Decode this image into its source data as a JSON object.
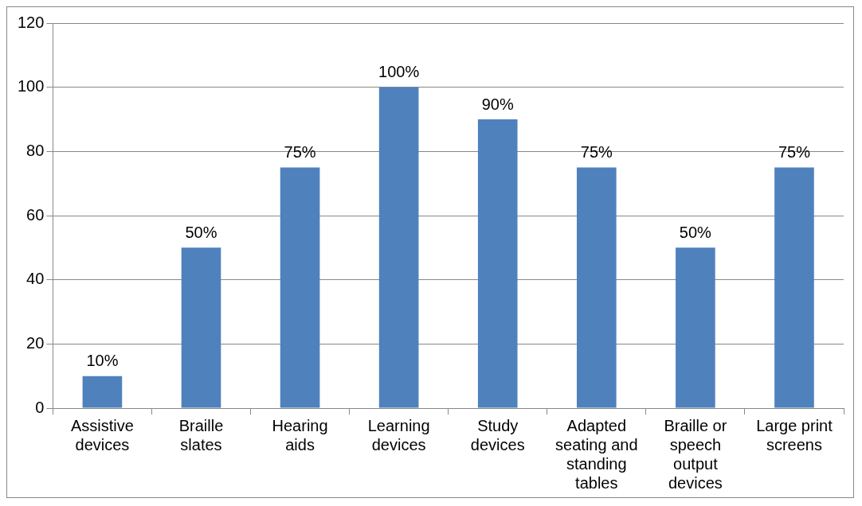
{
  "chart_data": {
    "type": "bar",
    "categories": [
      "Assistive devices",
      "Braille slates",
      "Hearing aids",
      "Learning devices",
      "Study devices",
      "Adapted seating and standing tables",
      "Braille or speech output devices",
      "Large print screens"
    ],
    "values": [
      10,
      50,
      75,
      100,
      90,
      75,
      50,
      75
    ],
    "value_labels": [
      "10%",
      "50%",
      "75%",
      "100%",
      "90%",
      "75%",
      "50%",
      "75%"
    ],
    "color": "#4f81bd",
    "ylim": [
      0,
      120
    ],
    "yticks": [
      0,
      20,
      40,
      60,
      80,
      100,
      120
    ],
    "grid": "y",
    "legend": false
  }
}
